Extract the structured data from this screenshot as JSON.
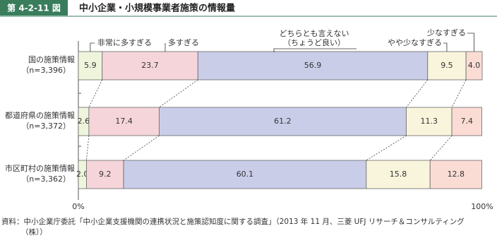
{
  "header": {
    "figure_number": "第 4-2-11 図",
    "title": "中小企業・小規模事業者施策の情報量"
  },
  "chart_data": {
    "type": "stacked-bar-horizontal",
    "categories": [
      "国の施策情報",
      "都道府県の施策情報",
      "市区町村の施策情報"
    ],
    "sample_sizes": [
      "（n=3,396）",
      "（n=3,372）",
      "（n=3,362）"
    ],
    "series": [
      {
        "name": "非常に多すぎる",
        "color": "#eef5dc",
        "values": [
          5.9,
          2.6,
          2.0
        ],
        "value_labels": [
          "5.9",
          "2.6",
          "2.0"
        ]
      },
      {
        "name": "多すぎる",
        "color": "#f5d5da",
        "values": [
          23.7,
          17.4,
          9.2
        ],
        "value_labels": [
          "23.7",
          "17.4",
          "9.2"
        ]
      },
      {
        "name": "どちらとも言えない（ちょうど良い）",
        "color": "#c9cde8",
        "values": [
          56.9,
          61.2,
          60.1
        ],
        "value_labels": [
          "56.9",
          "61.2",
          "60.1"
        ]
      },
      {
        "name": "やや少なすぎる",
        "color": "#f8f5dc",
        "values": [
          9.5,
          11.3,
          15.8
        ],
        "value_labels": [
          "9.5",
          "11.3",
          "15.8"
        ]
      },
      {
        "name": "少なすぎる",
        "color": "#fbdcd5",
        "values": [
          4.0,
          7.4,
          12.8
        ],
        "value_labels": [
          "4.0",
          "7.4",
          "12.8"
        ]
      }
    ],
    "xlim": [
      0,
      100
    ],
    "xticks": [
      {
        "value": 0,
        "label": "0%"
      },
      {
        "value": 100,
        "label": "100%"
      }
    ]
  },
  "source": "資料：中小企業庁委託「中小企業支援機関の連携状況と施策認知度に関する調査」（2013 年 11 月、三菱 UFJ リサーチ＆コンサルティング（株））"
}
